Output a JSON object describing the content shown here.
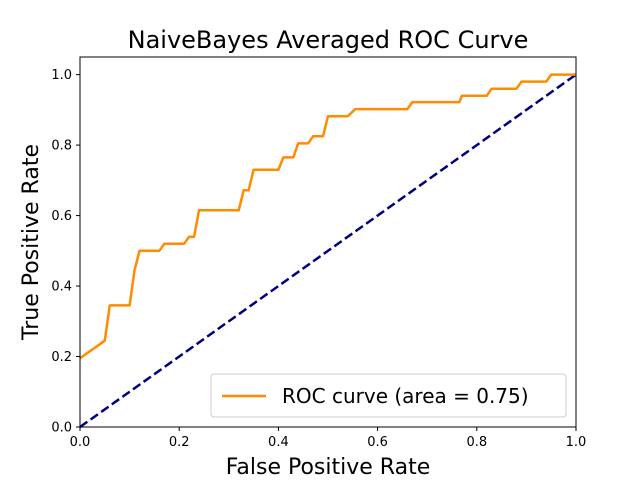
{
  "chart_data": {
    "type": "line",
    "title": "NaiveBayes Averaged ROC Curve",
    "xlabel": "False Positive Rate",
    "ylabel": "True Positive Rate",
    "xlim": [
      0.0,
      1.0
    ],
    "ylim": [
      0.0,
      1.05
    ],
    "xticks": [
      "0.0",
      "0.2",
      "0.4",
      "0.6",
      "0.8",
      "1.0"
    ],
    "yticks": [
      "0.0",
      "0.2",
      "0.4",
      "0.6",
      "0.8",
      "1.0"
    ],
    "grid": false,
    "legend_position": "bottom-right",
    "series": [
      {
        "name": "ROC curve (area = 0.75)",
        "color": "#ff8c00",
        "style": "solid",
        "x": [
          0.0,
          0.05,
          0.06,
          0.1,
          0.11,
          0.12,
          0.16,
          0.17,
          0.21,
          0.22,
          0.23,
          0.24,
          0.32,
          0.33,
          0.34,
          0.35,
          0.4,
          0.41,
          0.43,
          0.44,
          0.46,
          0.47,
          0.49,
          0.5,
          0.54,
          0.555,
          0.66,
          0.67,
          0.765,
          0.77,
          0.82,
          0.83,
          0.88,
          0.89,
          0.94,
          0.95,
          1.0
        ],
        "y": [
          0.195,
          0.245,
          0.345,
          0.345,
          0.445,
          0.5,
          0.5,
          0.52,
          0.52,
          0.54,
          0.54,
          0.615,
          0.615,
          0.672,
          0.672,
          0.73,
          0.73,
          0.765,
          0.765,
          0.805,
          0.805,
          0.825,
          0.825,
          0.882,
          0.882,
          0.902,
          0.902,
          0.922,
          0.922,
          0.94,
          0.94,
          0.96,
          0.96,
          0.98,
          0.98,
          1.0,
          1.0
        ]
      },
      {
        "name": "",
        "color": "#000080",
        "style": "dashed",
        "x": [
          0.0,
          1.0
        ],
        "y": [
          0.0,
          1.0
        ]
      }
    ]
  }
}
